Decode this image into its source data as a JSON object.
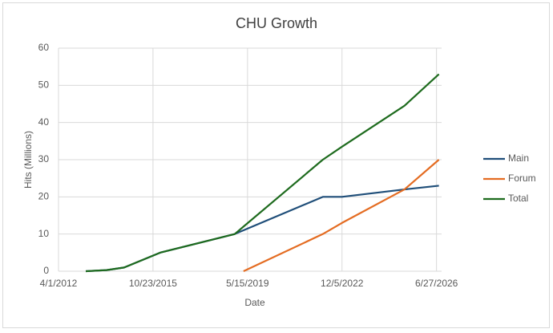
{
  "chart_data": {
    "type": "line",
    "title": "CHU Growth",
    "x_label": "Date",
    "y_label": "Hits (Millions)",
    "x": [
      41375,
      41661,
      41903,
      42399,
      43424,
      43545,
      44636,
      44900,
      45759,
      46233
    ],
    "series": [
      {
        "name": "Main",
        "color": "#1f4e79",
        "values": [
          0,
          0.3,
          1,
          5,
          10,
          11,
          20,
          20,
          22,
          23
        ]
      },
      {
        "name": "Forum",
        "color": "#e46c22",
        "values": [
          null,
          null,
          null,
          null,
          null,
          0,
          10,
          13,
          22,
          30
        ]
      },
      {
        "name": "Total",
        "color": "#1e6b1e",
        "values": [
          0,
          0.3,
          1,
          5,
          10,
          12,
          30,
          33.5,
          44.5,
          53
        ]
      }
    ],
    "xlim": [
      41000,
      46270
    ],
    "xticks": [
      {
        "value": 41000,
        "label": "4/1/2012"
      },
      {
        "value": 42300,
        "label": "10/23/2015"
      },
      {
        "value": 43600,
        "label": "5/15/2019"
      },
      {
        "value": 44900,
        "label": "12/5/2022"
      },
      {
        "value": 46200,
        "label": "6/27/2026"
      }
    ],
    "ylim": [
      0,
      60
    ],
    "yticks": [
      0,
      10,
      20,
      30,
      40,
      50,
      60
    ],
    "grid": true,
    "legend": "right"
  }
}
